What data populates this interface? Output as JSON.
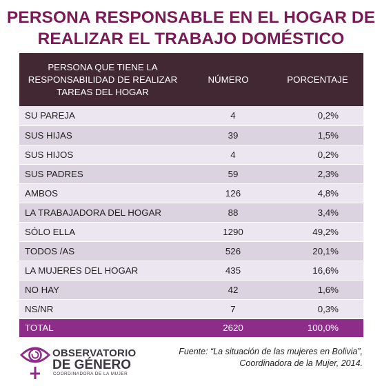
{
  "title_line1": "PERSONA RESPONSABLE EN EL HOGAR DE",
  "title_line2": "REALIZAR EL TRABAJO DOMÉSTICO",
  "table": {
    "headers": [
      "PERSONA QUE TIENE LA RESPONSABILIDAD DE REALIZAR TAREAS DEL HOGAR",
      "NÚMERO",
      "PORCENTAJE"
    ],
    "rows": [
      {
        "persona": "SU PAREJA",
        "numero": "4",
        "porcentaje": "0,2%"
      },
      {
        "persona": "SUS HIJAS",
        "numero": "39",
        "porcentaje": "1,5%"
      },
      {
        "persona": "SUS HIJOS",
        "numero": "4",
        "porcentaje": "0,2%"
      },
      {
        "persona": "SUS PADRES",
        "numero": "59",
        "porcentaje": "2,3%"
      },
      {
        "persona": "AMBOS",
        "numero": "126",
        "porcentaje": "4,8%"
      },
      {
        "persona": "LA TRABAJADORA DEL HOGAR",
        "numero": "88",
        "porcentaje": "3,4%"
      },
      {
        "persona": "SÓLO ELLA",
        "numero": "1290",
        "porcentaje": "49,2%"
      },
      {
        "persona": "TODOS /AS",
        "numero": "526",
        "porcentaje": "20,1%"
      },
      {
        "persona": "LA MUJERES DEL HOGAR",
        "numero": "435",
        "porcentaje": "16,6%"
      },
      {
        "persona": "NO HAY",
        "numero": "42",
        "porcentaje": "1,6%"
      },
      {
        "persona": "NS/NR",
        "numero": "7",
        "porcentaje": "0,3%"
      }
    ],
    "total": {
      "persona": "TOTAL",
      "numero": "2620",
      "porcentaje": "100,0%"
    }
  },
  "logo": {
    "line1": "OBSERVATORIO",
    "line2": "DE GÉNERO",
    "line3": "COORDINADORA DE LA MUJER",
    "icon": "eye-venus-symbol-icon"
  },
  "source_line1": "Fuente: “La situación de las mujeres en Bolivia”,",
  "source_line2": "Coordinadora de la Mujer, 2014.",
  "colors": {
    "title": "#7a1a55",
    "header_bg": "#422832",
    "row_light": "#ebe6ef",
    "row_dark": "#dcd3e1",
    "total_bg": "#8e2c8a",
    "logo_accent": "#8e2c8a"
  }
}
